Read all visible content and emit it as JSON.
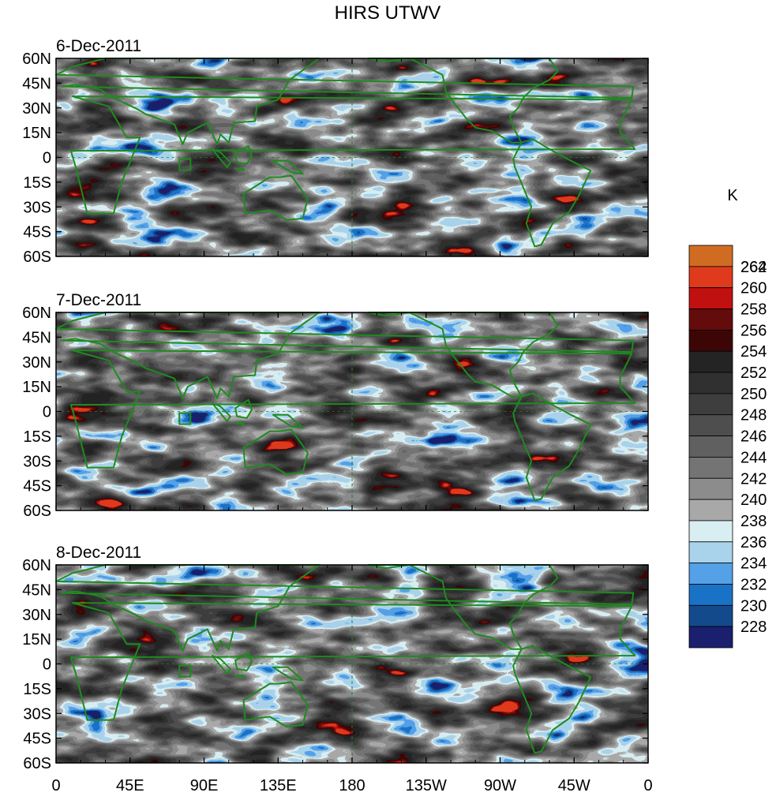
{
  "chart_data": {
    "type": "heatmap",
    "title": "HIRS UTWV",
    "units_label": "K",
    "x_ticks": [
      "0",
      "45E",
      "90E",
      "135E",
      "180",
      "135W",
      "90W",
      "45W",
      "0"
    ],
    "y_ticks": [
      "60N",
      "45N",
      "30N",
      "15N",
      "0",
      "15S",
      "30S",
      "45S",
      "60S"
    ],
    "xlim_deg_east": [
      0,
      360
    ],
    "ylim_deg": [
      -60,
      60
    ],
    "colorbar": {
      "levels": [
        228,
        230,
        232,
        234,
        236,
        238,
        240,
        242,
        244,
        246,
        248,
        250,
        252,
        254,
        256,
        258,
        260,
        262,
        264
      ],
      "colors": [
        "#1a1f6e",
        "#124a8c",
        "#1a72c7",
        "#55a1e8",
        "#a9d3ea",
        "#d8eef2",
        "#a8a8a8",
        "#8c8c8c",
        "#747474",
        "#606060",
        "#4e4e4e",
        "#3e3e3e",
        "#303030",
        "#242424",
        "#3d0606",
        "#640c0c",
        "#c11010",
        "#e03a1c",
        "#d06c22"
      ]
    },
    "panels": [
      {
        "label": "6-Dec-2011"
      },
      {
        "label": "7-Dec-2011"
      },
      {
        "label": "8-Dec-2011"
      }
    ]
  }
}
